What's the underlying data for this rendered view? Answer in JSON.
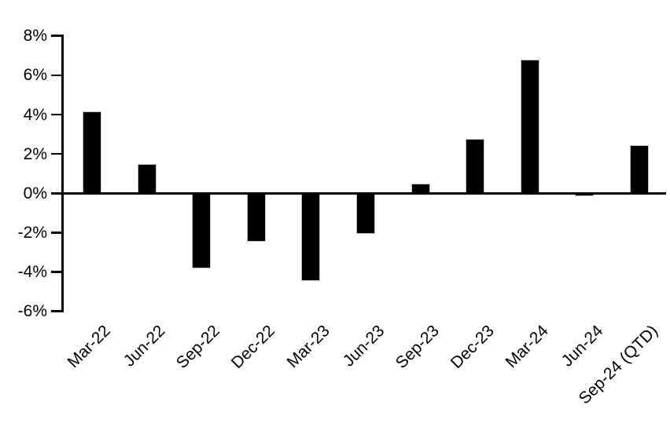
{
  "chart_data": {
    "type": "bar",
    "title": "",
    "xlabel": "",
    "ylabel": "",
    "categories": [
      "Mar-22",
      "Jun-22",
      "Sep-22",
      "Dec-22",
      "Mar-23",
      "Jun-23",
      "Sep-23",
      "Dec-23",
      "Mar-24",
      "Jun-24",
      "Sep-24 (QTD)"
    ],
    "values": [
      4.15,
      1.5,
      -3.8,
      -2.45,
      -4.45,
      -2.05,
      0.5,
      2.75,
      6.8,
      -0.15,
      2.45
    ],
    "value_unit": "%",
    "ylim": [
      -6,
      8
    ],
    "y_ticks": [
      8,
      6,
      4,
      2,
      0,
      -2,
      -4,
      -6
    ],
    "y_tick_labels": [
      "8%",
      "6%",
      "4%",
      "2%",
      "0%",
      "-2%",
      "-4%",
      "-6%"
    ],
    "grid": false,
    "legend": false,
    "series_count": 1,
    "bar_color": "#000000",
    "bar_border_color": "#bfbfbf",
    "axis_color": "#000000",
    "background_color": "#ffffff"
  }
}
